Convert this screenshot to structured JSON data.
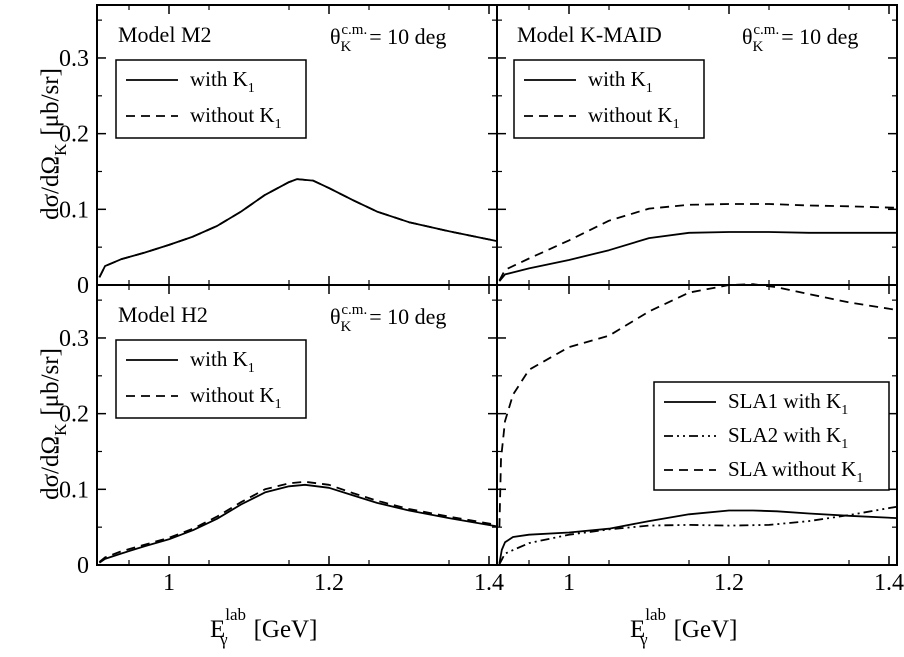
{
  "chart_data": [
    {
      "type": "line",
      "panel": "top-left",
      "title": "Model M2",
      "annotation": {
        "theta_sym": "θ",
        "theta_sub": "K",
        "theta_sup": "c.m.",
        "rest": "= 10 deg"
      },
      "xlim": [
        0.91,
        1.41
      ],
      "ylim": [
        0,
        0.37
      ],
      "xticks": [
        "1",
        "1.2",
        "1.4"
      ],
      "xtick_values": [
        1.0,
        1.2,
        1.4
      ],
      "yticks": [
        "0",
        "0.1",
        "0.2",
        "0.3"
      ],
      "ytick_values": [
        0,
        0.1,
        0.2,
        0.3
      ],
      "legend_position": "top-left",
      "legend": [
        {
          "text": "with K",
          "sub": "1",
          "style": "solid"
        },
        {
          "text": "without K",
          "sub": "1",
          "style": "dashed"
        }
      ],
      "series": [
        {
          "style": "solid",
          "x": [
            0.913,
            0.92,
            0.94,
            0.97,
            1.0,
            1.03,
            1.06,
            1.09,
            1.12,
            1.15,
            1.16,
            1.18,
            1.2,
            1.23,
            1.26,
            1.3,
            1.35,
            1.41
          ],
          "y": [
            0.01,
            0.025,
            0.034,
            0.043,
            0.053,
            0.064,
            0.078,
            0.097,
            0.119,
            0.136,
            0.14,
            0.138,
            0.128,
            0.112,
            0.097,
            0.083,
            0.071,
            0.058
          ]
        },
        {
          "style": "dashed",
          "x": [
            0.913,
            0.92,
            0.94,
            0.97,
            1.0,
            1.03,
            1.06,
            1.09,
            1.12,
            1.15,
            1.16,
            1.18,
            1.2,
            1.23,
            1.26,
            1.3,
            1.35,
            1.41
          ],
          "y": [
            0.01,
            0.025,
            0.034,
            0.043,
            0.053,
            0.064,
            0.078,
            0.097,
            0.119,
            0.136,
            0.14,
            0.138,
            0.128,
            0.112,
            0.097,
            0.083,
            0.071,
            0.058
          ]
        }
      ]
    },
    {
      "type": "line",
      "panel": "top-right",
      "title": "Model K-MAID",
      "annotation": {
        "theta_sym": "θ",
        "theta_sub": "K",
        "theta_sup": "c.m.",
        "rest": "= 10 deg"
      },
      "xlim": [
        0.91,
        1.41
      ],
      "ylim": [
        0,
        0.37
      ],
      "xticks": [
        "1",
        "1.2",
        "1.4"
      ],
      "xtick_values": [
        1.0,
        1.2,
        1.4
      ],
      "yticks": [],
      "legend_position": "top-left",
      "legend": [
        {
          "text": "with K",
          "sub": "1",
          "style": "solid"
        },
        {
          "text": "without K",
          "sub": "1",
          "style": "dashed"
        }
      ],
      "series": [
        {
          "style": "solid",
          "x": [
            0.913,
            0.92,
            0.95,
            1.0,
            1.05,
            1.1,
            1.15,
            1.2,
            1.25,
            1.3,
            1.35,
            1.41
          ],
          "y": [
            0.005,
            0.014,
            0.022,
            0.033,
            0.046,
            0.062,
            0.069,
            0.07,
            0.07,
            0.069,
            0.069,
            0.069
          ]
        },
        {
          "style": "dashed",
          "x": [
            0.913,
            0.92,
            0.95,
            1.0,
            1.05,
            1.1,
            1.15,
            1.2,
            1.25,
            1.3,
            1.35,
            1.41
          ],
          "y": [
            0.006,
            0.02,
            0.035,
            0.059,
            0.085,
            0.101,
            0.106,
            0.107,
            0.107,
            0.105,
            0.104,
            0.102
          ]
        }
      ]
    },
    {
      "type": "line",
      "panel": "bottom-left",
      "title": "Model H2",
      "annotation": {
        "theta_sym": "θ",
        "theta_sub": "K",
        "theta_sup": "c.m.",
        "rest": "= 10 deg"
      },
      "xlim": [
        0.91,
        1.41
      ],
      "ylim": [
        0,
        0.37
      ],
      "xticks": [
        "1",
        "1.2",
        "1.4"
      ],
      "xtick_values": [
        1.0,
        1.2,
        1.4
      ],
      "yticks": [
        "0",
        "0.1",
        "0.2",
        "0.3"
      ],
      "ytick_values": [
        0,
        0.1,
        0.2,
        0.3
      ],
      "legend_position": "top-left",
      "legend": [
        {
          "text": "with K",
          "sub": "1",
          "style": "solid"
        },
        {
          "text": "without K",
          "sub": "1",
          "style": "dashed"
        }
      ],
      "series": [
        {
          "style": "solid",
          "x": [
            0.913,
            0.92,
            0.94,
            0.97,
            1.0,
            1.03,
            1.06,
            1.09,
            1.12,
            1.15,
            1.17,
            1.2,
            1.23,
            1.26,
            1.3,
            1.35,
            1.41
          ],
          "y": [
            0.003,
            0.008,
            0.015,
            0.025,
            0.034,
            0.046,
            0.061,
            0.08,
            0.096,
            0.104,
            0.106,
            0.102,
            0.092,
            0.082,
            0.072,
            0.062,
            0.051
          ]
        },
        {
          "style": "dashed",
          "x": [
            0.913,
            0.92,
            0.94,
            0.97,
            1.0,
            1.03,
            1.06,
            1.09,
            1.12,
            1.15,
            1.17,
            1.2,
            1.23,
            1.26,
            1.3,
            1.35,
            1.41
          ],
          "y": [
            0.004,
            0.01,
            0.018,
            0.027,
            0.036,
            0.048,
            0.064,
            0.083,
            0.1,
            0.108,
            0.11,
            0.106,
            0.095,
            0.085,
            0.074,
            0.064,
            0.053
          ]
        }
      ]
    },
    {
      "type": "line",
      "panel": "bottom-right",
      "title": "",
      "xlim": [
        0.91,
        1.41
      ],
      "ylim": [
        0,
        0.37
      ],
      "xticks": [
        "1",
        "1.2",
        "1.4"
      ],
      "xtick_values": [
        1.0,
        1.2,
        1.4
      ],
      "yticks": [],
      "legend_position": "center-right",
      "legend": [
        {
          "text": "SLA1 with K",
          "sub": "1",
          "style": "solid"
        },
        {
          "text": "SLA2 with K",
          "sub": "1",
          "style": "dashdotdot"
        },
        {
          "text": "SLA without K",
          "sub": "1",
          "style": "dashed"
        }
      ],
      "series": [
        {
          "style": "solid",
          "x": [
            0.913,
            0.916,
            0.92,
            0.93,
            0.95,
            1.0,
            1.05,
            1.1,
            1.15,
            1.2,
            1.23,
            1.26,
            1.3,
            1.35,
            1.41
          ],
          "y": [
            0.002,
            0.02,
            0.03,
            0.037,
            0.04,
            0.043,
            0.048,
            0.058,
            0.067,
            0.072,
            0.072,
            0.071,
            0.068,
            0.065,
            0.062
          ]
        },
        {
          "style": "dashdotdot",
          "x": [
            0.913,
            0.92,
            0.95,
            1.0,
            1.05,
            1.1,
            1.15,
            1.2,
            1.25,
            1.3,
            1.35,
            1.41
          ],
          "y": [
            0.001,
            0.015,
            0.029,
            0.04,
            0.047,
            0.052,
            0.053,
            0.052,
            0.053,
            0.058,
            0.066,
            0.077
          ]
        },
        {
          "style": "dashed",
          "x": [
            0.913,
            0.915,
            0.92,
            0.93,
            0.95,
            1.0,
            1.05,
            1.1,
            1.15,
            1.2,
            1.23,
            1.26,
            1.3,
            1.35,
            1.41
          ],
          "y": [
            0.05,
            0.14,
            0.19,
            0.225,
            0.258,
            0.288,
            0.303,
            0.335,
            0.36,
            0.37,
            0.371,
            0.367,
            0.358,
            0.347,
            0.337
          ]
        }
      ]
    }
  ],
  "axes": {
    "ylabel_main": "dσ/dΩ",
    "ylabel_sub": "K",
    "ylabel_unit": "[μb/sr]",
    "xlabel_main": "E",
    "xlabel_sub": "γ",
    "xlabel_sup": "lab",
    "xlabel_unit": "[GeV]"
  }
}
